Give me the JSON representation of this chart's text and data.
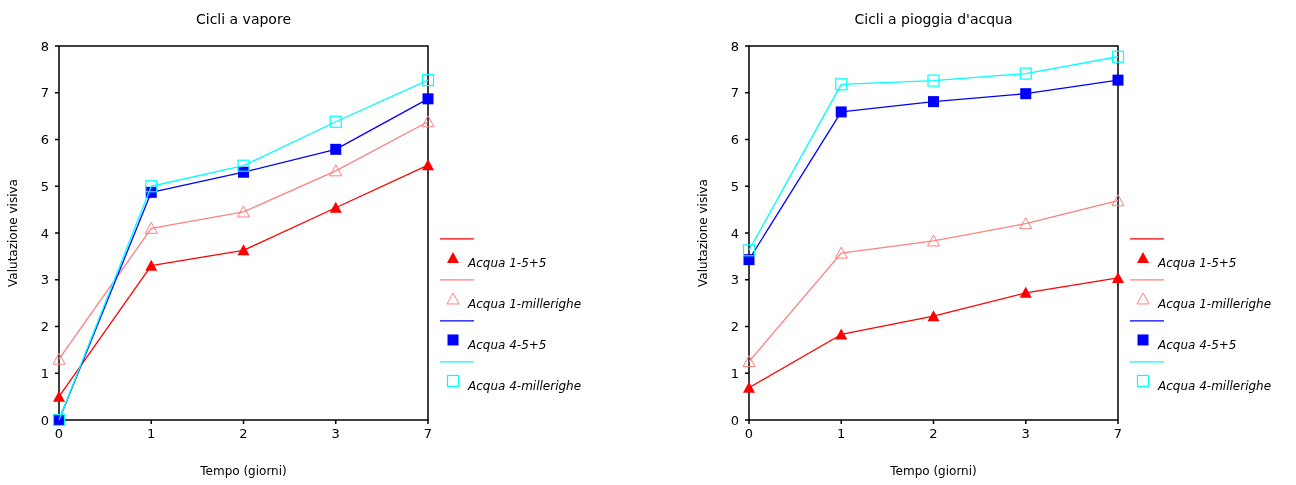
{
  "chart_data": [
    {
      "type": "line",
      "title": "Cicli a vapore",
      "xlabel": "Tempo (giorni)",
      "ylabel": "Valutazione visiva",
      "categories": [
        "0",
        "1",
        "2",
        "3",
        "7"
      ],
      "ylim": [
        0,
        8
      ],
      "yticks": [
        0,
        1,
        2,
        3,
        4,
        5,
        6,
        7,
        8
      ],
      "legend": "right",
      "grid": false,
      "series": [
        {
          "name": "Acqua 1-5+5",
          "color": "#ff0000",
          "marker": "triangle",
          "values": [
            0.5,
            3.3,
            3.63,
            4.54,
            5.45
          ]
        },
        {
          "name": "Acqua 1-millerighe",
          "color": "#ff8080",
          "marker": "triangle-open",
          "values": [
            1.3,
            4.1,
            4.45,
            5.33,
            6.38
          ]
        },
        {
          "name": "Acqua 4-5+5",
          "color": "#0000ff",
          "marker": "square",
          "values": [
            0,
            4.87,
            5.3,
            5.79,
            6.87
          ]
        },
        {
          "name": "Acqua 4-millerighe",
          "color": "#00ffff",
          "marker": "square-open",
          "values": [
            0,
            5.0,
            5.44,
            6.38,
            7.27
          ]
        }
      ]
    },
    {
      "type": "line",
      "title": "Cicli a pioggia d'acqua",
      "xlabel": "Tempo (giorni)",
      "ylabel": "Valutazione visiva",
      "categories": [
        "0",
        "1",
        "2",
        "3",
        "7"
      ],
      "ylim": [
        0,
        8
      ],
      "yticks": [
        0,
        1,
        2,
        3,
        4,
        5,
        6,
        7,
        8
      ],
      "legend": "right",
      "grid": false,
      "series": [
        {
          "name": "Acqua 1-5+5",
          "color": "#ff0000",
          "marker": "triangle",
          "values": [
            0.69,
            1.83,
            2.22,
            2.72,
            3.04
          ]
        },
        {
          "name": "Acqua 1-millerighe",
          "color": "#ff8080",
          "marker": "triangle-open",
          "values": [
            1.25,
            3.57,
            3.83,
            4.2,
            4.69
          ]
        },
        {
          "name": "Acqua 4-5+5",
          "color": "#0000ff",
          "marker": "square",
          "values": [
            3.43,
            6.59,
            6.81,
            6.98,
            7.27
          ]
        },
        {
          "name": "Acqua 4-millerighe",
          "color": "#00ffff",
          "marker": "square-open",
          "values": [
            3.63,
            7.18,
            7.26,
            7.41,
            7.77
          ]
        }
      ]
    }
  ]
}
